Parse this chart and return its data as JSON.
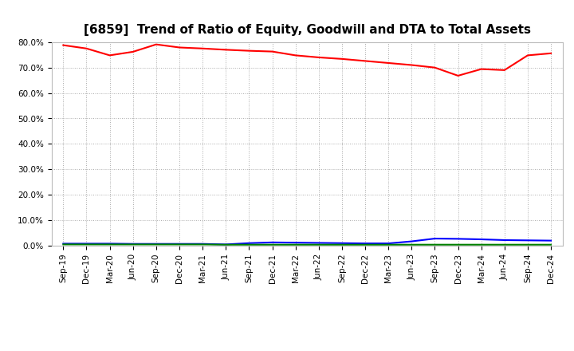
{
  "title": "[6859]  Trend of Ratio of Equity, Goodwill and DTA to Total Assets",
  "x_labels": [
    "Sep-19",
    "Dec-19",
    "Mar-20",
    "Jun-20",
    "Sep-20",
    "Dec-20",
    "Mar-21",
    "Jun-21",
    "Sep-21",
    "Dec-21",
    "Mar-22",
    "Jun-22",
    "Sep-22",
    "Dec-22",
    "Mar-23",
    "Jun-23",
    "Sep-23",
    "Dec-23",
    "Mar-24",
    "Jun-24",
    "Sep-24",
    "Dec-24"
  ],
  "equity": [
    0.788,
    0.775,
    0.748,
    0.762,
    0.791,
    0.779,
    0.775,
    0.77,
    0.766,
    0.763,
    0.748,
    0.74,
    0.734,
    0.726,
    0.718,
    0.71,
    0.7,
    0.668,
    0.694,
    0.69,
    0.748,
    0.756
  ],
  "goodwill": [
    0.008,
    0.008,
    0.008,
    0.007,
    0.007,
    0.007,
    0.007,
    0.005,
    0.01,
    0.013,
    0.012,
    0.011,
    0.01,
    0.009,
    0.009,
    0.017,
    0.028,
    0.027,
    0.025,
    0.022,
    0.021,
    0.02
  ],
  "dta": [
    0.005,
    0.005,
    0.005,
    0.005,
    0.005,
    0.005,
    0.005,
    0.004,
    0.004,
    0.004,
    0.004,
    0.004,
    0.004,
    0.004,
    0.004,
    0.004,
    0.004,
    0.004,
    0.004,
    0.004,
    0.004,
    0.004
  ],
  "equity_color": "#ff0000",
  "goodwill_color": "#0000ff",
  "dta_color": "#008000",
  "ylim": [
    0.0,
    0.8
  ],
  "yticks": [
    0.0,
    0.1,
    0.2,
    0.3,
    0.4,
    0.5,
    0.6,
    0.7,
    0.8
  ],
  "background_color": "#ffffff",
  "grid_color": "#aaaaaa",
  "title_fontsize": 11,
  "tick_fontsize": 7.5,
  "legend_fontsize": 9
}
